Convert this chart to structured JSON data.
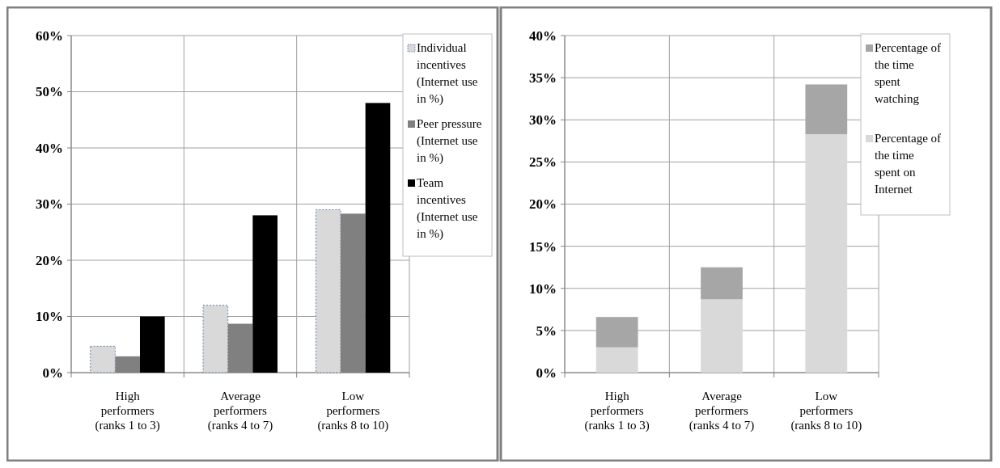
{
  "chart_data": [
    {
      "type": "bar",
      "categories": [
        "High performers (ranks 1 to 3)",
        "Average performers (ranks 4 to 7)",
        "Low performers (ranks 8 to 10)"
      ],
      "series": [
        {
          "name": "Individual incentives (Internet use in %)",
          "color": "#d9d9d9",
          "values": [
            4.7,
            12,
            29
          ]
        },
        {
          "name": "Peer pressure (Internet use in %)",
          "color": "#808080",
          "values": [
            2.9,
            8.7,
            28.3
          ]
        },
        {
          "name": "Team incentives (Internet use in %)",
          "color": "#000000",
          "values": [
            10,
            28,
            48
          ]
        }
      ],
      "ylim": [
        0,
        60
      ],
      "yticks": [
        {
          "value": 0,
          "label": "0%"
        },
        {
          "value": 10,
          "label": "10%"
        },
        {
          "value": 20,
          "label": "20%"
        },
        {
          "value": 30,
          "label": "30%"
        },
        {
          "value": 40,
          "label": "40%"
        },
        {
          "value": 50,
          "label": "50%"
        },
        {
          "value": 60,
          "label": "60%"
        }
      ],
      "grid": true,
      "legend": "top right"
    },
    {
      "type": "bar",
      "stacked": true,
      "categories": [
        "High performers (ranks 1 to 3)",
        "Average performers (ranks 4 to 7)",
        "Low performers (ranks 8 to 10)"
      ],
      "series": [
        {
          "name": "Percentage of the time spent on Internet",
          "color": "#d9d9d9",
          "values": [
            3,
            8.7,
            28.3
          ]
        },
        {
          "name": "Percentage of the time spent watching",
          "color": "#a6a6a6",
          "values": [
            3.6,
            3.8,
            5.9
          ]
        }
      ],
      "ylim": [
        0,
        40
      ],
      "yticks": [
        {
          "value": 0,
          "label": "0%"
        },
        {
          "value": 5,
          "label": "5%"
        },
        {
          "value": 10,
          "label": "10%"
        },
        {
          "value": 15,
          "label": "15%"
        },
        {
          "value": 20,
          "label": "20%"
        },
        {
          "value": 25,
          "label": "25%"
        },
        {
          "value": 30,
          "label": "30%"
        },
        {
          "value": 35,
          "label": "35%"
        },
        {
          "value": 40,
          "label": "40%"
        }
      ],
      "grid": true,
      "legend": "top right"
    }
  ]
}
